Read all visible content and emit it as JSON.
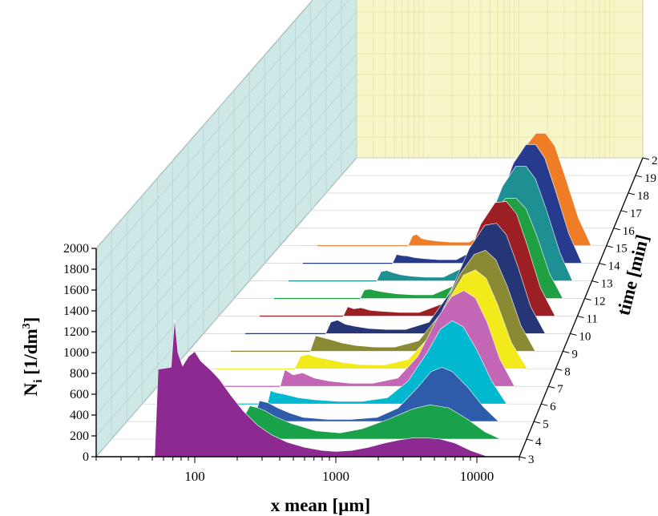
{
  "chart_data": {
    "type": "area",
    "style": "3d-waterfall",
    "xlabel": "x mean [µm]",
    "ylabel_main": "N",
    "ylabel_sub": "i",
    "ylabel_unit": "[1/dm",
    "ylabel_unit_sup": "3",
    "ylabel_close": "]",
    "zlabel": "time [min]",
    "x_scale": "log",
    "xlim": [
      20,
      20000
    ],
    "x_ticks": [
      "100",
      "1000",
      "10000"
    ],
    "ylim": [
      0,
      2000
    ],
    "y_ticks": [
      "0",
      "200",
      "400",
      "600",
      "800",
      "1000",
      "1200",
      "1400",
      "1600",
      "1800",
      "2000"
    ],
    "z_ticks": [
      "3",
      "4",
      "5",
      "6",
      "7",
      "8",
      "9",
      "10",
      "11",
      "12",
      "13",
      "14",
      "15",
      "16",
      "17",
      "18",
      "19",
      "2"
    ],
    "grid": true,
    "wall_colors": {
      "back": "#f7f6c8",
      "side": "#cde8e6"
    },
    "series": [
      {
        "time": 3,
        "color": "#8c2a91",
        "x": [
          52,
          55,
          62,
          68,
          72,
          76,
          82,
          90,
          100,
          110,
          130,
          150,
          180,
          220,
          280,
          350,
          450,
          600,
          800,
          1000,
          1300,
          1700,
          2200,
          2800,
          3500,
          4500,
          5500,
          7000,
          9000,
          12000
        ],
        "y": [
          0,
          840,
          850,
          860,
          1320,
          1000,
          870,
          960,
          1010,
          920,
          830,
          740,
          590,
          440,
          300,
          210,
          140,
          90,
          60,
          50,
          60,
          90,
          130,
          160,
          180,
          180,
          170,
          130,
          60,
          0
        ]
      },
      {
        "time": 4,
        "color": "#1aa24a",
        "x": [
          160,
          180,
          200,
          230,
          260,
          300,
          400,
          600,
          900,
          1300,
          2000,
          3000,
          4000,
          5500,
          7500,
          10000,
          13000
        ],
        "y": [
          0,
          210,
          320,
          300,
          270,
          220,
          150,
          80,
          60,
          100,
          190,
          290,
          330,
          300,
          190,
          70,
          0
        ]
      },
      {
        "time": 5,
        "color": "#2f5caa",
        "x": [
          170,
          190,
          220,
          260,
          320,
          400,
          600,
          900,
          1400,
          2000,
          2800,
          3500,
          4200,
          5000,
          6500,
          8500,
          11000
        ],
        "y": [
          0,
          200,
          180,
          130,
          80,
          40,
          20,
          20,
          40,
          130,
          330,
          480,
          520,
          480,
          330,
          140,
          0
        ]
      },
      {
        "time": 6,
        "color": "#00b8cf",
        "x": [
          175,
          185,
          200,
          240,
          300,
          400,
          600,
          900,
          1400,
          2000,
          2800,
          3500,
          4300,
          5200,
          6500,
          8500,
          11000
        ],
        "y": [
          0,
          130,
          110,
          90,
          60,
          40,
          25,
          25,
          60,
          220,
          500,
          720,
          800,
          740,
          530,
          220,
          0
        ]
      },
      {
        "time": 7,
        "color": "#c366b5",
        "x": [
          175,
          190,
          220,
          260,
          320,
          420,
          600,
          900,
          1400,
          2000,
          2800,
          3600,
          4500,
          5500,
          6800,
          8500,
          11000
        ],
        "y": [
          0,
          160,
          110,
          130,
          80,
          50,
          30,
          30,
          80,
          290,
          650,
          860,
          920,
          850,
          610,
          260,
          0
        ]
      },
      {
        "time": 8,
        "color": "#f3ea1b",
        "x": [
          180,
          200,
          230,
          270,
          330,
          430,
          600,
          900,
          1400,
          2100,
          3000,
          3800,
          4700,
          5700,
          7000,
          9000,
          12000
        ],
        "y": [
          0,
          120,
          140,
          110,
          90,
          60,
          40,
          35,
          90,
          320,
          690,
          900,
          950,
          870,
          620,
          250,
          0
        ]
      },
      {
        "time": 9,
        "color": "#8b8a34",
        "x": [
          190,
          210,
          240,
          280,
          340,
          440,
          620,
          900,
          1400,
          2100,
          3000,
          3900,
          4800,
          5800,
          7200,
          9200,
          12000
        ],
        "y": [
          0,
          150,
          130,
          110,
          80,
          55,
          40,
          40,
          100,
          360,
          740,
          930,
          970,
          880,
          620,
          250,
          0
        ]
      },
      {
        "time": 10,
        "color": "#253576",
        "x": [
          200,
          220,
          250,
          290,
          350,
          450,
          630,
          900,
          1400,
          2100,
          3000,
          4000,
          5000,
          6000,
          7400,
          9500,
          12500
        ],
        "y": [
          0,
          110,
          130,
          90,
          70,
          50,
          40,
          40,
          110,
          400,
          820,
          1040,
          1060,
          950,
          660,
          260,
          0
        ]
      },
      {
        "time": 11,
        "color": "#9b1f23",
        "x": [
          220,
          240,
          270,
          310,
          370,
          470,
          650,
          950,
          1500,
          2200,
          3100,
          4100,
          5100,
          6200,
          7600,
          9800,
          13000
        ],
        "y": [
          0,
          90,
          70,
          80,
          55,
          45,
          35,
          35,
          120,
          450,
          880,
          1090,
          1100,
          980,
          680,
          270,
          0
        ]
      },
      {
        "time": 12,
        "color": "#1ea043",
        "x": [
          240,
          260,
          290,
          330,
          390,
          490,
          680,
          1000,
          1500,
          2200,
          3200,
          4200,
          5200,
          6300,
          7800,
          10000,
          13000
        ],
        "y": [
          0,
          80,
          90,
          75,
          60,
          45,
          35,
          35,
          120,
          420,
          800,
          960,
          960,
          860,
          600,
          240,
          0
        ]
      },
      {
        "time": 13,
        "color": "#1e8f92",
        "x": [
          260,
          285,
          320,
          360,
          420,
          520,
          700,
          1000,
          1500,
          2300,
          3300,
          4300,
          5300,
          6400,
          8000,
          10500,
          13500
        ],
        "y": [
          0,
          90,
          100,
          80,
          60,
          45,
          35,
          35,
          130,
          480,
          910,
          1100,
          1100,
          980,
          680,
          270,
          0
        ]
      },
      {
        "time": 14,
        "color": "#263a8e",
        "x": [
          280,
          305,
          340,
          380,
          440,
          540,
          720,
          1050,
          1600,
          2400,
          3400,
          4400,
          5400,
          6500,
          8100,
          10700,
          14000
        ],
        "y": [
          0,
          85,
          75,
          70,
          55,
          45,
          35,
          35,
          140,
          520,
          960,
          1140,
          1140,
          1010,
          700,
          280,
          0
        ]
      },
      {
        "time": 15,
        "color": "#ef7d26",
        "x": [
          300,
          330,
          360,
          400,
          460,
          560,
          740,
          1100,
          1600,
          2400,
          3400,
          4500,
          5500,
          6700,
          8300,
          11000,
          14500
        ],
        "y": [
          0,
          95,
          110,
          70,
          55,
          45,
          35,
          35,
          140,
          510,
          920,
          1080,
          1080,
          960,
          670,
          270,
          0
        ]
      }
    ]
  }
}
